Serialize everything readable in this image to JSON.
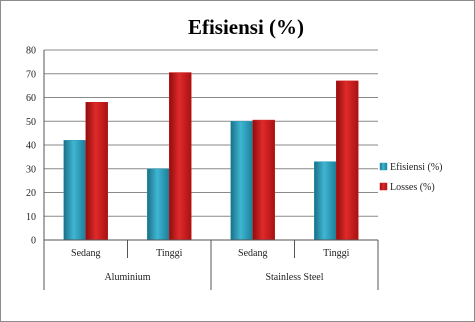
{
  "chart_data": {
    "type": "bar",
    "title": "Efisiensi (%)",
    "groups": [
      {
        "name": "Aluminium",
        "categories": [
          "Sedang",
          "Tinggi"
        ]
      },
      {
        "name": "Stainless Steel",
        "categories": [
          "Sedang",
          "Tinggi"
        ]
      }
    ],
    "categories": [
      "Sedang",
      "Tinggi",
      "Sedang",
      "Tinggi"
    ],
    "series": [
      {
        "name": "Efisiensi (%)",
        "color": "#2f9fbd",
        "values": [
          42,
          30,
          50,
          33
        ]
      },
      {
        "name": "Losses (%)",
        "color": "#d01c1c",
        "values": [
          58,
          70.5,
          50.5,
          67
        ]
      }
    ],
    "ylim": [
      0,
      80
    ],
    "yticks": [
      0,
      10,
      20,
      30,
      40,
      50,
      60,
      70,
      80
    ],
    "grid": true,
    "legend_position": "right"
  }
}
